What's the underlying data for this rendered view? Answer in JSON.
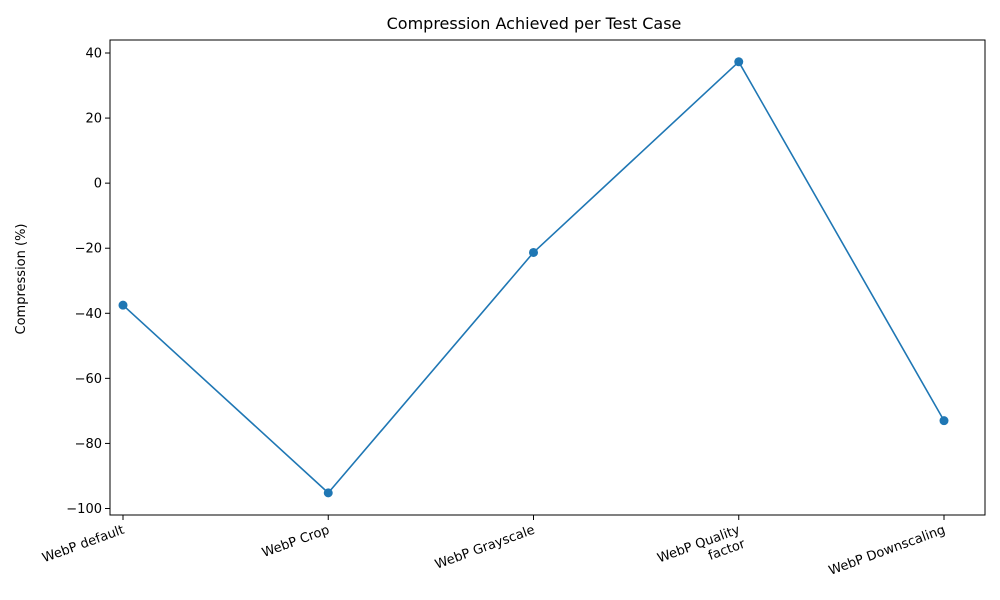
{
  "chart_data": {
    "type": "line",
    "title": "Compression Achieved per Test Case",
    "xlabel": "",
    "ylabel": "Compression (%)",
    "categories": [
      "WebP default",
      "WebP Crop",
      "WebP Grayscale",
      "WebP Quality factor",
      "WebP Downscaling"
    ],
    "category_lines": [
      [
        "WebP default"
      ],
      [
        "WebP Crop"
      ],
      [
        "WebP Grayscale"
      ],
      [
        "WebP Quality",
        "factor"
      ],
      [
        "WebP Downscaling"
      ]
    ],
    "values": [
      -37.5,
      -95.2,
      -21.3,
      37.3,
      -73.0
    ],
    "ylim": [
      -102,
      44
    ],
    "yticks": [
      -100,
      -80,
      -60,
      -40,
      -20,
      0,
      20,
      40
    ],
    "grid": false,
    "legend": "none",
    "line_color": "#1f77b4",
    "marker": "circle"
  }
}
